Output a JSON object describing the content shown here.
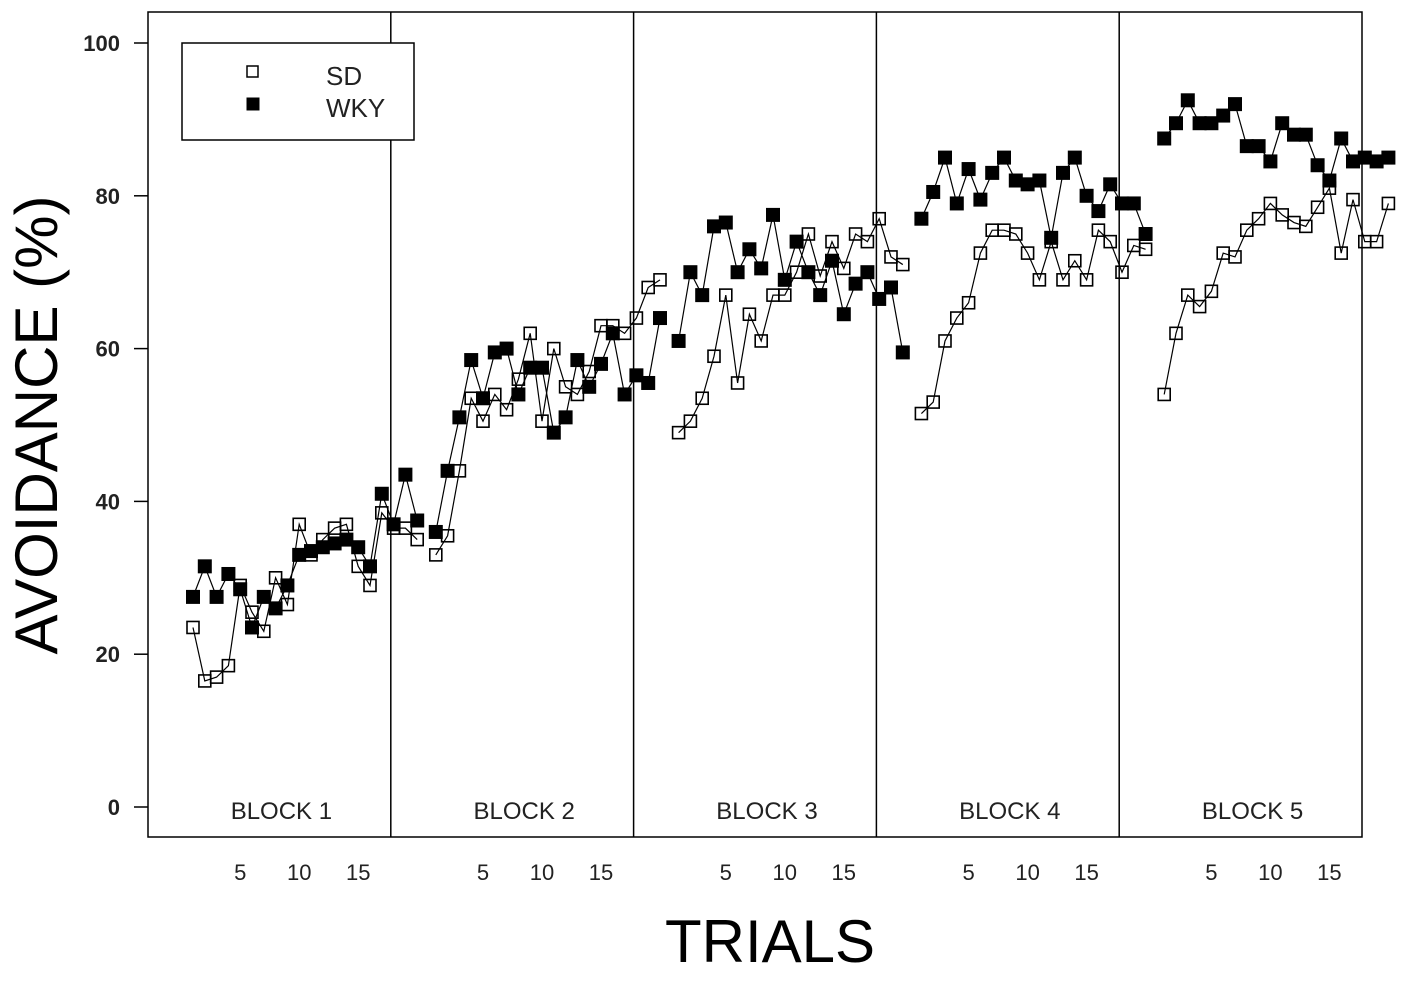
{
  "chart_data": {
    "type": "line",
    "title": "",
    "xlabel": "TRIALS",
    "ylabel": "AVOIDANCE (%)",
    "ylim": [
      0,
      100
    ],
    "yticks": [
      0,
      20,
      40,
      60,
      80,
      100
    ],
    "grid": false,
    "legend_position": "top-left",
    "legend": [
      {
        "name": "SD",
        "marker": "open-square"
      },
      {
        "name": "WKY",
        "marker": "filled-square"
      }
    ],
    "blocks": [
      {
        "label": "BLOCK 1",
        "xtick_labels": [
          "5",
          "10",
          "15"
        ]
      },
      {
        "label": "BLOCK 2",
        "xtick_labels": [
          "5",
          "10",
          "15"
        ]
      },
      {
        "label": "BLOCK 3",
        "xtick_labels": [
          "5",
          "10",
          "15"
        ]
      },
      {
        "label": "BLOCK 4",
        "xtick_labels": [
          "5",
          "10",
          "15"
        ]
      },
      {
        "label": "BLOCK 5",
        "xtick_labels": [
          "5",
          "10",
          "15"
        ]
      }
    ],
    "trials_per_block": 20,
    "series": [
      {
        "name": "SD",
        "marker": "open-square",
        "blocks": [
          [
            23.5,
            16.5,
            17,
            18.5,
            29,
            25.5,
            23,
            30,
            26.5,
            37,
            33,
            35,
            36.5,
            37,
            31.5,
            29,
            38.5,
            36.5,
            36.5,
            35
          ],
          [
            33,
            35.5,
            44,
            53.5,
            50.5,
            54,
            52,
            56,
            62,
            50.5,
            60,
            55,
            54,
            57,
            63,
            63,
            62,
            64,
            68,
            69
          ],
          [
            49,
            50.5,
            53.5,
            59,
            67,
            55.5,
            64.5,
            61,
            67,
            67,
            70,
            75,
            69.5,
            74,
            70.5,
            75,
            74,
            77,
            72,
            71
          ],
          [
            51.5,
            53,
            61,
            64,
            66,
            72.5,
            75.5,
            75.5,
            75,
            72.5,
            69,
            74,
            69,
            71.5,
            69,
            75.5,
            74,
            70,
            73.5,
            73
          ],
          [
            54,
            62,
            67,
            65.5,
            67.5,
            72.5,
            72,
            75.5,
            77,
            79,
            77.5,
            76.5,
            76,
            78.5,
            81,
            72.5,
            79.5,
            74,
            74,
            79
          ]
        ]
      },
      {
        "name": "WKY",
        "marker": "filled-square",
        "blocks": [
          [
            27.5,
            31.5,
            27.5,
            30.5,
            28.5,
            23.5,
            27.5,
            26,
            29,
            33,
            33.5,
            34,
            34.5,
            35,
            34,
            31.5,
            41,
            37,
            43.5,
            37.5
          ],
          [
            36,
            44,
            51,
            58.5,
            53.5,
            59.5,
            60,
            54,
            57.5,
            57.5,
            49,
            51,
            58.5,
            55,
            58,
            62,
            54,
            56.5,
            55.5,
            64
          ],
          [
            61,
            70,
            67,
            76,
            76.5,
            70,
            73,
            70.5,
            77.5,
            69,
            74,
            70,
            67,
            71.5,
            64.5,
            68.5,
            70,
            66.5,
            68,
            59.5
          ],
          [
            77,
            80.5,
            85,
            79,
            83.5,
            79.5,
            83,
            85,
            82,
            81.5,
            82,
            74.5,
            83,
            85,
            80,
            78,
            81.5,
            79,
            79,
            75
          ],
          [
            87.5,
            89.5,
            92.5,
            89.5,
            89.5,
            90.5,
            92,
            86.5,
            86.5,
            84.5,
            89.5,
            88,
            88,
            84,
            82,
            87.5,
            84.5,
            85,
            84.5,
            85
          ]
        ]
      }
    ]
  }
}
